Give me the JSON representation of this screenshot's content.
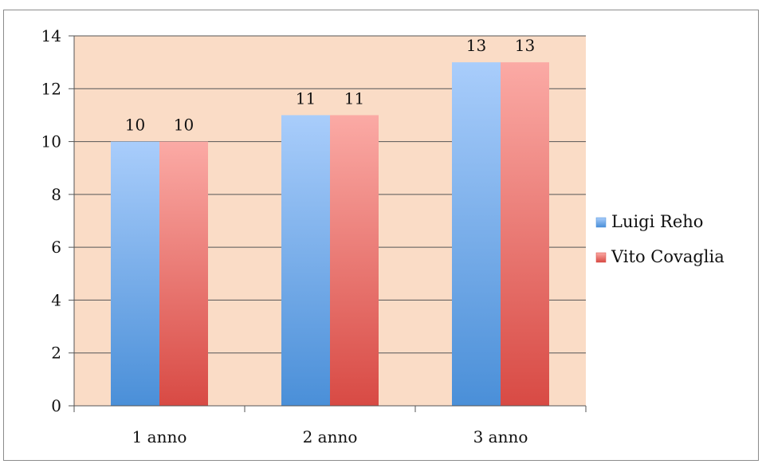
{
  "chart_data": {
    "type": "bar",
    "categories": [
      "1 anno",
      "2 anno",
      "3 anno"
    ],
    "series": [
      {
        "name": "Luigi Reho",
        "values": [
          10,
          11,
          13
        ]
      },
      {
        "name": "Vito Covaglia",
        "values": [
          10,
          11,
          13
        ]
      }
    ],
    "data_labels": [
      [
        "10",
        "11",
        "13"
      ],
      [
        "10",
        "11",
        "13"
      ]
    ],
    "ylim": [
      0,
      14
    ],
    "y_ticks": [
      0,
      2,
      4,
      6,
      8,
      10,
      12,
      14
    ],
    "grid": true,
    "legend_position": "right",
    "title": "",
    "xlabel": "",
    "ylabel": "",
    "colors": {
      "plot_background": "#fadcc6",
      "series_1_top": "#a9cdfb",
      "series_1_bottom": "#4a8fd8",
      "series_2_top": "#fbaaa5",
      "series_2_bottom": "#d84a44",
      "gridline": "#555555"
    }
  }
}
